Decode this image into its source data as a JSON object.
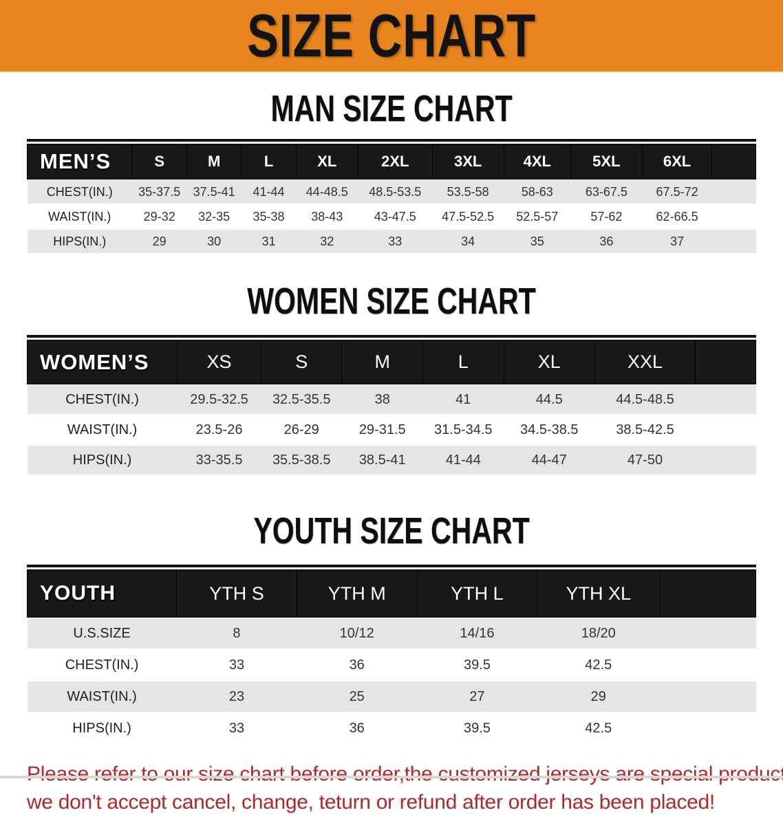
{
  "banner": {
    "title": "SIZE CHART"
  },
  "sections": [
    {
      "heading": "MAN SIZE CHART",
      "table": {
        "header_label": "MEN’S",
        "columns": [
          "S",
          "M",
          "L",
          "XL",
          "2XL",
          "3XL",
          "4XL",
          "5XL",
          "6XL"
        ],
        "rows": [
          {
            "label": "CHEST(IN.)",
            "values": [
              "35-37.5",
              "37.5-41",
              "41-44",
              "44-48.5",
              "48.5-53.5",
              "53.5-58",
              "58-63",
              "63-67.5",
              "67.5-72"
            ]
          },
          {
            "label": "WAIST(IN.)",
            "values": [
              "29-32",
              "32-35",
              "35-38",
              "38-43",
              "43-47.5",
              "47.5-52.5",
              "52.5-57",
              "57-62",
              "62-66.5"
            ]
          },
          {
            "label": "HIPS(IN.)",
            "values": [
              "29",
              "30",
              "31",
              "32",
              "33",
              "34",
              "35",
              "36",
              "37"
            ]
          }
        ]
      }
    },
    {
      "heading": "WOMEN SIZE CHART",
      "table": {
        "header_label": "WOMEN’S",
        "columns": [
          "XS",
          "S",
          "M",
          "L",
          "XL",
          "XXL"
        ],
        "rows": [
          {
            "label": "CHEST(IN.)",
            "values": [
              "29.5-32.5",
              "32.5-35.5",
              "38",
              "41",
              "44.5",
              "44.5-48.5"
            ]
          },
          {
            "label": "WAIST(IN.)",
            "values": [
              "23.5-26",
              "26-29",
              "29-31.5",
              "31.5-34.5",
              "34.5-38.5",
              "38.5-42.5"
            ]
          },
          {
            "label": "HIPS(IN.)",
            "values": [
              "33-35.5",
              "35.5-38.5",
              "38.5-41",
              "41-44",
              "44-47",
              "47-50"
            ]
          }
        ]
      }
    },
    {
      "heading": "YOUTH SIZE CHART",
      "table": {
        "header_label": "YOUTH",
        "columns": [
          "YTH S",
          "YTH M",
          "YTH L",
          "YTH XL"
        ],
        "rows": [
          {
            "label": "U.S.SIZE",
            "values": [
              "8",
              "10/12",
              "14/16",
              "18/20"
            ]
          },
          {
            "label": "CHEST(IN.)",
            "values": [
              "33",
              "36",
              "39.5",
              "42.5"
            ]
          },
          {
            "label": "WAIST(IN.)",
            "values": [
              "23",
              "25",
              "27",
              "29"
            ]
          },
          {
            "label": "HIPS(IN.)",
            "values": [
              "33",
              "36",
              "39.5",
              "42.5"
            ]
          }
        ]
      }
    }
  ],
  "footer": {
    "line1": "Please refer to our size chart before order,the customized jerseys are special products,",
    "line2": "we don't accept cancel, change, teturn or refund after order has been placed!"
  },
  "colors": {
    "banner_bg": "#E8851E",
    "header_bar": "#181818",
    "row_gray": "#E5E5E5",
    "footer_red": "#B1282A"
  }
}
